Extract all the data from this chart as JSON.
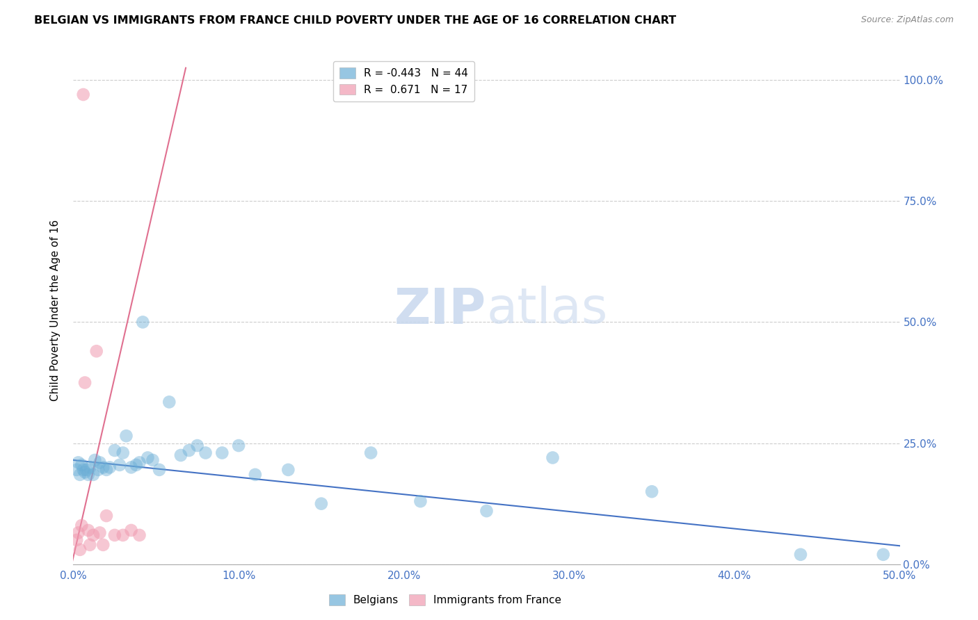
{
  "title": "BELGIAN VS IMMIGRANTS FROM FRANCE CHILD POVERTY UNDER THE AGE OF 16 CORRELATION CHART",
  "source": "Source: ZipAtlas.com",
  "ylabel": "Child Poverty Under the Age of 16",
  "xmin": 0.0,
  "xmax": 0.5,
  "ymin": 0.0,
  "ymax": 1.05,
  "legend_entries": [
    {
      "label": "R = -0.443   N = 44",
      "color": "#aec6e8"
    },
    {
      "label": "R =  0.671   N = 17",
      "color": "#f4b8c8"
    }
  ],
  "legend_labels": [
    "Belgians",
    "Immigrants from France"
  ],
  "blue_color": "#6baed6",
  "pink_color": "#f09ab0",
  "blue_line_color": "#4472c4",
  "pink_line_color": "#e07090",
  "right_axis_color": "#4472c4",
  "belgians_x": [
    0.002,
    0.003,
    0.004,
    0.005,
    0.006,
    0.007,
    0.008,
    0.009,
    0.01,
    0.012,
    0.013,
    0.015,
    0.016,
    0.018,
    0.02,
    0.022,
    0.025,
    0.028,
    0.03,
    0.032,
    0.035,
    0.038,
    0.04,
    0.042,
    0.045,
    0.048,
    0.052,
    0.058,
    0.065,
    0.07,
    0.075,
    0.08,
    0.09,
    0.1,
    0.11,
    0.13,
    0.15,
    0.18,
    0.21,
    0.25,
    0.29,
    0.35,
    0.44,
    0.49
  ],
  "belgians_y": [
    0.195,
    0.21,
    0.185,
    0.205,
    0.195,
    0.19,
    0.195,
    0.185,
    0.2,
    0.185,
    0.215,
    0.195,
    0.21,
    0.2,
    0.195,
    0.2,
    0.235,
    0.205,
    0.23,
    0.265,
    0.2,
    0.205,
    0.21,
    0.5,
    0.22,
    0.215,
    0.195,
    0.335,
    0.225,
    0.235,
    0.245,
    0.23,
    0.23,
    0.245,
    0.185,
    0.195,
    0.125,
    0.23,
    0.13,
    0.11,
    0.22,
    0.15,
    0.02,
    0.02
  ],
  "france_x": [
    0.002,
    0.003,
    0.004,
    0.005,
    0.006,
    0.007,
    0.009,
    0.01,
    0.012,
    0.014,
    0.016,
    0.018,
    0.02,
    0.025,
    0.03,
    0.035,
    0.04
  ],
  "france_y": [
    0.05,
    0.065,
    0.03,
    0.08,
    0.97,
    0.375,
    0.07,
    0.04,
    0.06,
    0.44,
    0.065,
    0.04,
    0.1,
    0.06,
    0.06,
    0.07,
    0.06
  ],
  "blue_line_x": [
    0.0,
    0.5
  ],
  "blue_line_y": [
    0.215,
    0.038
  ],
  "pink_line_x": [
    -0.001,
    0.068
  ],
  "pink_line_y": [
    0.0,
    1.025
  ]
}
